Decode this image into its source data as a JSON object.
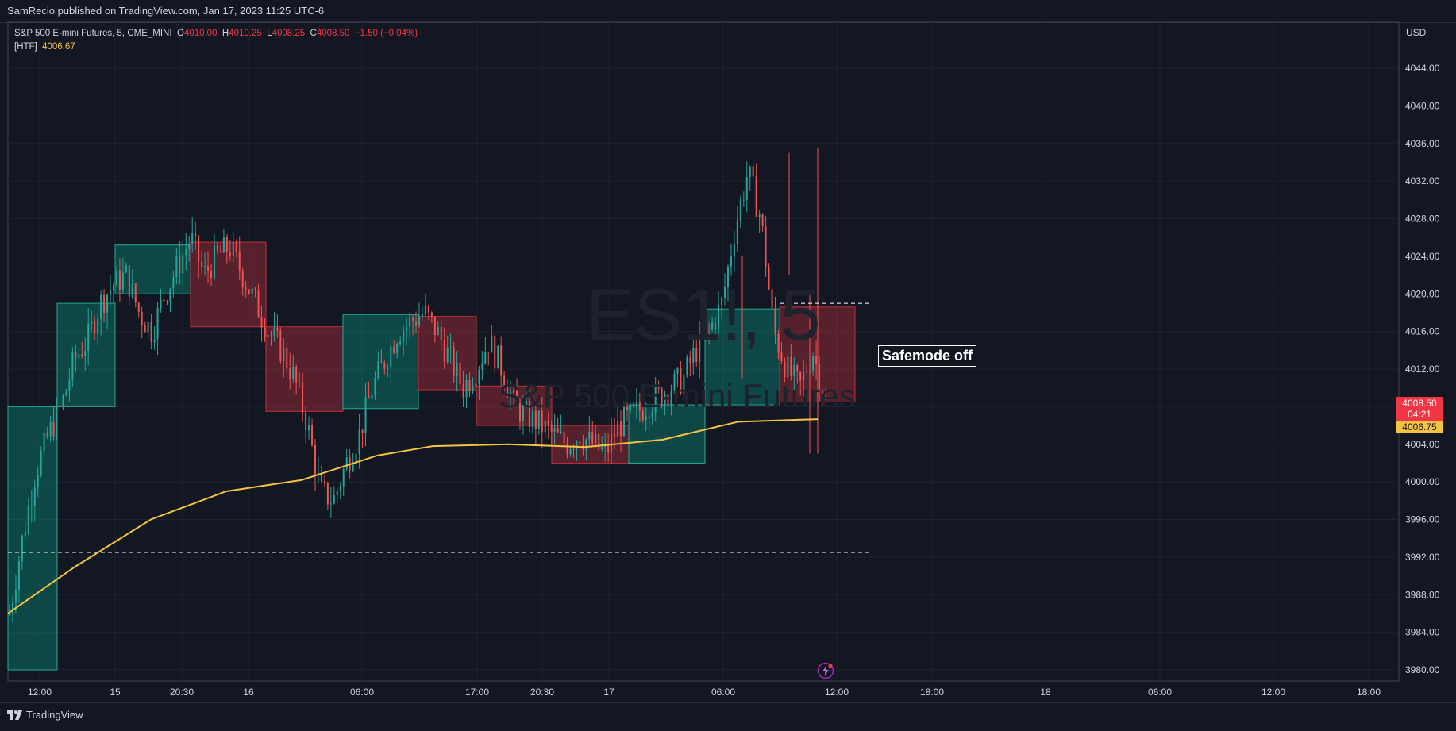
{
  "header": {
    "publisher": "SamRecio published on TradingView.com, Jan 17, 2023 11:25 UTC-6"
  },
  "legend": {
    "symbol": "S&P 500 E-mini Futures, 5, CME_MINI",
    "o_label": "O",
    "o_value": "4010.00",
    "h_label": "H",
    "h_value": "4010.25",
    "l_label": "L",
    "l_value": "4008.25",
    "c_label": "C",
    "c_value": "4008.50",
    "change": "−1.50 (−0.04%)",
    "htf_label": "[HTF]",
    "htf_value": "4006.67"
  },
  "watermark": {
    "ticker": "ES1!, 5",
    "name": "S&P 500 E-mini Futures"
  },
  "currency": "USD",
  "annotation": {
    "text": "Safemode off"
  },
  "price_tags": {
    "last_price": "4008.50",
    "countdown": "04:21",
    "ma_price": "4006.75"
  },
  "brand": {
    "name": "TradingView"
  },
  "colors": {
    "bull": "#089981",
    "bear": "#f23645",
    "ma": "#f5c342",
    "bg": "#131722",
    "grid": "#1e222d"
  },
  "chart_data": {
    "type": "candlestick",
    "y_axis": {
      "ticks": [
        "4044.00",
        "4040.00",
        "4036.00",
        "4032.00",
        "4028.00",
        "4024.00",
        "4020.00",
        "4016.00",
        "4012.00",
        "4008.00",
        "4004.00",
        "4000.00",
        "3996.00",
        "3992.00",
        "3988.00",
        "3984.00",
        "3980.00"
      ],
      "range": [
        3979,
        4046
      ]
    },
    "x_axis": {
      "ticks": [
        "12:00",
        "15",
        "20:30",
        "16",
        "06:00",
        "17:00",
        "20:30",
        "17",
        "06:00",
        "12:00",
        "18:00",
        "18",
        "06:00",
        "12:00",
        "18:00"
      ]
    },
    "htf_boxes": [
      {
        "dir": "bull",
        "open": 3980.0,
        "close": 4008.0
      },
      {
        "dir": "bull",
        "open": 4008.0,
        "close": 4019.0
      },
      {
        "dir": "bull",
        "open": 4020.0,
        "close": 4025.2
      },
      {
        "dir": "bear",
        "open": 4025.5,
        "close": 4016.5
      },
      {
        "dir": "bear",
        "open": 4016.5,
        "close": 4007.5
      },
      {
        "dir": "bull",
        "open": 4007.8,
        "close": 4017.8
      },
      {
        "dir": "bear",
        "open": 4017.6,
        "close": 4009.8
      },
      {
        "dir": "bear",
        "open": 4010.2,
        "close": 4006.0
      },
      {
        "dir": "bear",
        "open": 4006.0,
        "close": 4002.0
      },
      {
        "dir": "bull",
        "open": 4002.0,
        "close": 4008.2
      },
      {
        "dir": "bull",
        "open": 4008.2,
        "close": 4018.4
      },
      {
        "dir": "bear",
        "open": 4018.6,
        "close": 4008.5
      }
    ],
    "ma_line": [
      3986.0,
      3991.0,
      3996.0,
      3999.0,
      4000.2,
      4002.8,
      4003.8,
      4004.0,
      4003.7,
      4004.5,
      4006.4,
      4006.67
    ],
    "close_path": [
      3986,
      3994,
      4001,
      4005,
      4008,
      4013,
      4015,
      4019,
      4021,
      4022,
      4018,
      4016,
      4020,
      4023,
      4026,
      4022,
      4024,
      4025,
      4022,
      4019,
      4016,
      4014,
      4011,
      4006,
      3999,
      3998,
      4002,
      4005,
      4010,
      4013,
      4016,
      4017,
      4018,
      4016,
      4013,
      4010,
      4012,
      4015,
      4012,
      4008,
      4007,
      4006,
      4005,
      4004,
      4005,
      4004,
      4003,
      4006,
      4007,
      4008,
      4009,
      4010,
      4011,
      4014,
      4016,
      4019,
      4027,
      4033,
      4028,
      4016,
      4012,
      4010,
      4014,
      4008.5
    ],
    "dashed_levels": [
      {
        "price": 4019.0,
        "label": ""
      },
      {
        "price": 3992.5,
        "label": ""
      }
    ],
    "last_price_line": 4008.5
  }
}
